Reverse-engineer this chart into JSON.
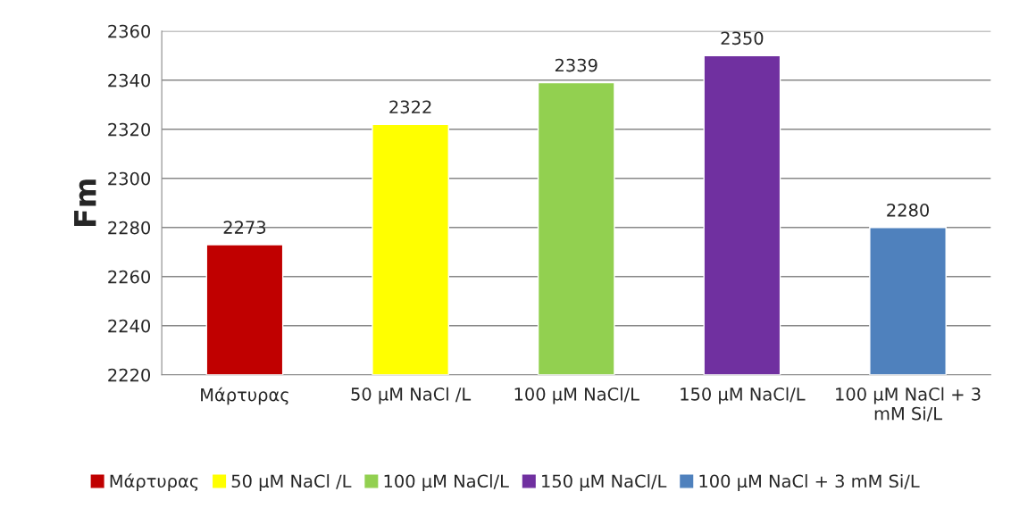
{
  "chart_data": {
    "type": "bar",
    "ylabel": "Fm",
    "categories": [
      "Μάρτυρας",
      "50 μM NaCl /L",
      "100 μM NaCl/L",
      "150 μM NaCl/L",
      "100 μM NaCl + 3 mM Si/L"
    ],
    "series": [
      {
        "name": "Μάρτυρας",
        "color": "#c00000",
        "values": [
          2273,
          null,
          null,
          null,
          null
        ]
      },
      {
        "name": "50 μM NaCl /L",
        "color": "#ffff00",
        "values": [
          null,
          2322,
          null,
          null,
          null
        ]
      },
      {
        "name": "100 μM NaCl/L",
        "color": "#92d050",
        "values": [
          null,
          null,
          2339,
          null,
          null
        ]
      },
      {
        "name": "150 μM NaCl/L",
        "color": "#7030a0",
        "values": [
          null,
          null,
          null,
          2350,
          null
        ]
      },
      {
        "name": "100 μM NaCl + 3 mM Si/L",
        "color": "#4f81bd",
        "values": [
          null,
          null,
          null,
          null,
          2280
        ]
      }
    ],
    "ylim": [
      2220,
      2360
    ],
    "yticks": [
      2220,
      2240,
      2260,
      2280,
      2300,
      2320,
      2340,
      2360
    ],
    "grid": "y",
    "legend": "bottom",
    "data_labels": true
  }
}
